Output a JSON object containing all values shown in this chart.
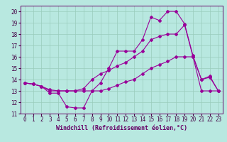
{
  "background_color": "#b8e8e0",
  "line_color": "#990099",
  "grid_color": "#99ccbb",
  "xlabel": "Windchill (Refroidissement éolien,°C)",
  "xlabel_fontsize": 6.0,
  "tick_fontsize": 5.5,
  "xlim": [
    -0.5,
    23.5
  ],
  "ylim": [
    11,
    20.5
  ],
  "yticks": [
    11,
    12,
    13,
    14,
    15,
    16,
    17,
    18,
    19,
    20
  ],
  "xticks": [
    0,
    1,
    2,
    3,
    4,
    5,
    6,
    7,
    8,
    9,
    10,
    11,
    12,
    13,
    14,
    15,
    16,
    17,
    18,
    19,
    20,
    21,
    22,
    23
  ],
  "line1_x": [
    0,
    1,
    2,
    3,
    4,
    5,
    6,
    7,
    8,
    9,
    10,
    11,
    12,
    13,
    14,
    15,
    16,
    17,
    18,
    19,
    20,
    21,
    22,
    23
  ],
  "line1_y": [
    13.7,
    13.6,
    13.4,
    12.8,
    12.8,
    11.6,
    11.5,
    11.5,
    13.0,
    13.7,
    15.0,
    16.5,
    16.5,
    16.5,
    17.5,
    19.5,
    19.2,
    20.0,
    20.0,
    18.9,
    16.1,
    14.0,
    14.2,
    13.0
  ],
  "line2_x": [
    0,
    1,
    2,
    3,
    4,
    5,
    6,
    7,
    8,
    9,
    10,
    11,
    12,
    13,
    14,
    15,
    16,
    17,
    18,
    19,
    20,
    21,
    22,
    23
  ],
  "line2_y": [
    13.7,
    13.6,
    13.4,
    13.0,
    13.0,
    13.0,
    13.0,
    13.0,
    13.0,
    13.0,
    13.2,
    13.5,
    13.8,
    14.0,
    14.5,
    15.0,
    15.3,
    15.6,
    16.0,
    16.0,
    16.0,
    13.0,
    13.0,
    13.0
  ],
  "line3_x": [
    0,
    1,
    2,
    3,
    4,
    5,
    6,
    7,
    8,
    9,
    10,
    11,
    12,
    13,
    14,
    15,
    16,
    17,
    18,
    19,
    20,
    21,
    22,
    23
  ],
  "line3_y": [
    13.7,
    13.6,
    13.4,
    13.1,
    13.0,
    13.0,
    13.0,
    13.2,
    14.0,
    14.5,
    14.8,
    15.2,
    15.5,
    16.0,
    16.5,
    17.5,
    17.8,
    18.0,
    18.0,
    18.8,
    16.0,
    14.0,
    14.3,
    13.0
  ]
}
